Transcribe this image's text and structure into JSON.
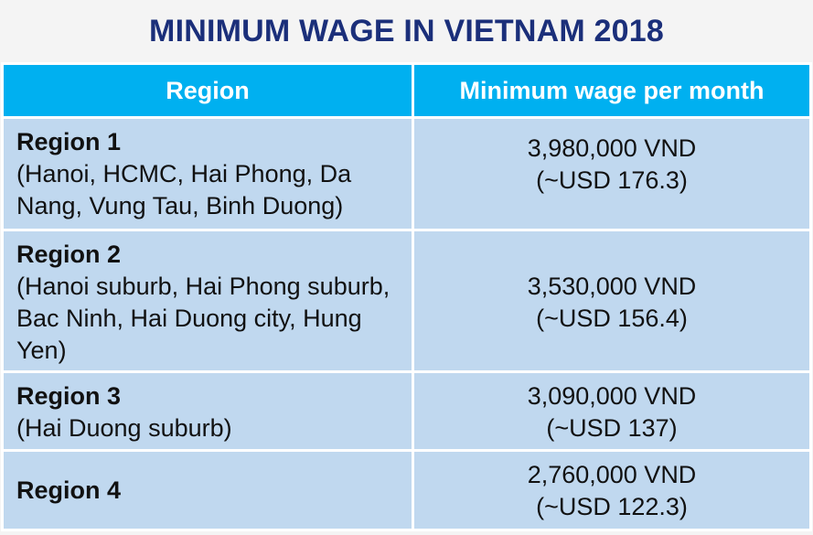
{
  "title": "MINIMUM WAGE IN VIETNAM 2018",
  "table": {
    "headers": [
      "Region",
      "Minimum wage per month"
    ],
    "rows": [
      {
        "region": "Region 1",
        "description": "(Hanoi, HCMC, Hai Phong, Da Nang, Vung Tau, Binh Duong)",
        "wage_vnd": "3,980,000 VND",
        "wage_usd": "(~USD 176.3)"
      },
      {
        "region": "Region 2",
        "description": "(Hanoi suburb, Hai Phong suburb, Bac Ninh, Hai Duong city, Hung Yen)",
        "wage_vnd": "3,530,000 VND",
        "wage_usd": "(~USD 156.4)"
      },
      {
        "region": "Region 3",
        "description": "(Hai Duong suburb)",
        "wage_vnd": "3,090,000 VND",
        "wage_usd": "(~USD 137)"
      },
      {
        "region": "Region 4",
        "description": "",
        "wage_vnd": "2,760,000 VND",
        "wage_usd": "(~USD 122.3)"
      }
    ]
  },
  "colors": {
    "title": "#1b2f7a",
    "header_bg": "#00b0f0",
    "row_bg": "#c0d8ef",
    "page_bg": "#f4f4f4"
  }
}
